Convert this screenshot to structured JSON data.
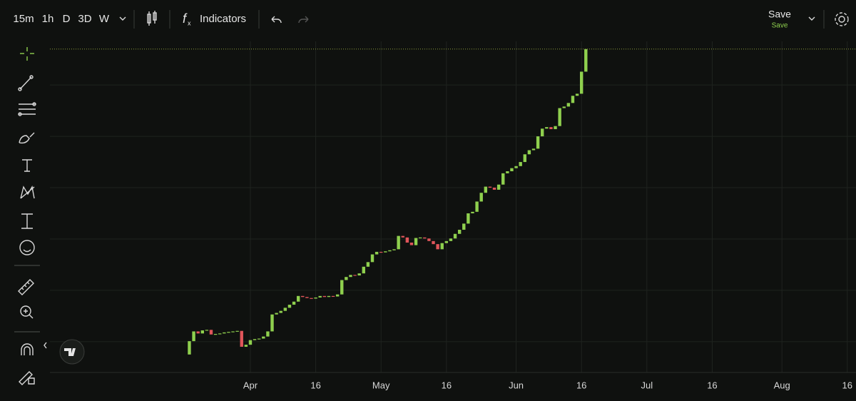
{
  "toolbar": {
    "intervals": [
      "15m",
      "1h",
      "D",
      "3D",
      "W"
    ],
    "active_interval": 2,
    "indicators": "Indicators",
    "save": "Save",
    "save_status": "Save"
  },
  "chart_data": {
    "type": "candlestick",
    "x": [
      "03-18",
      "03-19",
      "03-20",
      "03-21",
      "03-22",
      "03-23",
      "03-24",
      "03-25",
      "03-26",
      "03-27",
      "03-28",
      "03-29",
      "03-30",
      "03-31",
      "04-01",
      "04-02",
      "04-03",
      "04-04",
      "04-05",
      "04-06",
      "04-07",
      "04-08",
      "04-09",
      "04-10",
      "04-11",
      "04-12",
      "04-13",
      "04-14",
      "04-15",
      "04-16",
      "04-17",
      "04-18",
      "04-19",
      "04-20",
      "04-21",
      "04-22",
      "04-23",
      "04-24",
      "04-25",
      "04-26",
      "04-27",
      "04-28",
      "04-29",
      "04-30",
      "05-01",
      "05-02",
      "05-03",
      "05-04",
      "05-05",
      "05-06",
      "05-07",
      "05-08",
      "05-09",
      "05-10",
      "05-11",
      "05-12",
      "05-13",
      "05-14",
      "05-15",
      "05-16",
      "05-17",
      "05-18",
      "05-19",
      "05-20",
      "05-21",
      "05-22",
      "05-23",
      "05-24",
      "05-25",
      "05-26",
      "05-27",
      "05-28",
      "05-29",
      "05-30",
      "05-31",
      "06-01",
      "06-02",
      "06-03",
      "06-04",
      "06-05",
      "06-06",
      "06-07",
      "06-08",
      "06-09",
      "06-10",
      "06-11",
      "06-12",
      "06-13",
      "06-14",
      "06-15",
      "06-16",
      "06-17"
    ],
    "open": [
      7.5,
      10.1,
      12.0,
      11.6,
      12.2,
      12.3,
      11.4,
      11.5,
      11.6,
      11.8,
      11.9,
      12.0,
      12.1,
      9.0,
      9.4,
      10.3,
      10.5,
      10.6,
      11.0,
      12.0,
      15.3,
      15.6,
      16.0,
      16.6,
      17.2,
      17.8,
      18.9,
      18.7,
      18.5,
      18.4,
      18.6,
      18.9,
      18.7,
      18.9,
      18.8,
      19.2,
      22.0,
      22.6,
      23.0,
      22.9,
      23.3,
      24.6,
      25.5,
      27.0,
      27.5,
      27.4,
      27.6,
      27.8,
      28.0,
      30.6,
      30.3,
      29.3,
      28.8,
      30.2,
      30.3,
      30.1,
      29.6,
      29.0,
      28.0,
      29.2,
      29.6,
      30.1,
      31.0,
      31.8,
      33.0,
      35.0,
      35.3,
      37.3,
      39.0,
      40.2,
      40.0,
      39.6,
      40.6,
      42.8,
      43.2,
      43.8,
      44.2,
      45.0,
      46.5,
      47.3,
      47.6,
      50.0,
      51.5,
      51.8,
      51.4,
      52.0,
      55.5,
      55.8,
      56.5,
      57.9,
      58.3,
      62.6
    ],
    "close": [
      10.1,
      12.0,
      11.6,
      12.2,
      12.3,
      11.4,
      11.5,
      11.6,
      11.8,
      11.9,
      12.0,
      12.1,
      9.0,
      9.4,
      10.3,
      10.5,
      10.6,
      11.0,
      12.0,
      15.3,
      15.6,
      16.0,
      16.6,
      17.2,
      17.8,
      18.9,
      18.7,
      18.5,
      18.4,
      18.6,
      18.9,
      18.7,
      18.9,
      18.8,
      19.2,
      22.0,
      22.6,
      23.0,
      22.9,
      23.3,
      24.6,
      25.5,
      27.0,
      27.5,
      27.4,
      27.6,
      27.8,
      28.0,
      30.6,
      30.3,
      29.3,
      28.8,
      30.2,
      30.3,
      30.1,
      29.6,
      29.0,
      28.0,
      29.2,
      29.6,
      30.1,
      31.0,
      31.8,
      33.0,
      35.0,
      35.3,
      37.3,
      39.0,
      40.2,
      40.0,
      39.6,
      40.6,
      42.8,
      43.2,
      43.8,
      44.2,
      45.0,
      46.5,
      47.3,
      47.6,
      50.0,
      51.5,
      51.8,
      51.4,
      52.0,
      55.5,
      55.8,
      56.5,
      57.9,
      58.3,
      62.6,
      67.0
    ],
    "up_color": "#8fd04e",
    "down_color": "#e0555a",
    "xlim": [
      "02-14",
      "08-18"
    ],
    "xticks": [
      {
        "value": "04-01",
        "label": "Apr"
      },
      {
        "value": "04-16",
        "label": "16"
      },
      {
        "value": "05-01",
        "label": "May"
      },
      {
        "value": "05-16",
        "label": "16"
      },
      {
        "value": "06-01",
        "label": "Jun"
      },
      {
        "value": "06-16",
        "label": "16"
      },
      {
        "value": "07-01",
        "label": "Jul"
      },
      {
        "value": "07-16",
        "label": "16"
      },
      {
        "value": "08-01",
        "label": "Aug"
      },
      {
        "value": "08-16",
        "label": "16"
      }
    ],
    "ylim": [
      4,
      68.5
    ],
    "ygrid": [
      10,
      20,
      30,
      40,
      50,
      60
    ],
    "grid": true,
    "last_price_line": true
  }
}
